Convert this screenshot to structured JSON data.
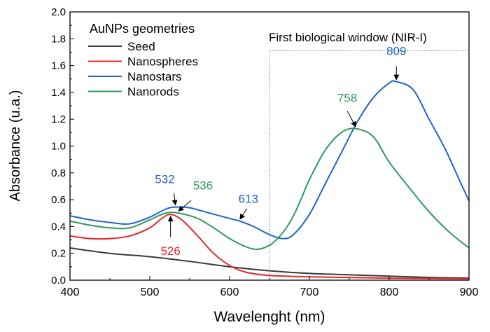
{
  "chart_data": {
    "type": "line",
    "xlabel": "Wavelenght (nm)",
    "ylabel": "Absorbance (u.a.)",
    "xlim": [
      400,
      900
    ],
    "ylim": [
      0,
      2.0
    ],
    "xticks": [
      400,
      500,
      600,
      700,
      800,
      900
    ],
    "yticks": [
      "0.0",
      "0.2",
      "0.4",
      "0.6",
      "0.8",
      "1.0",
      "1.2",
      "1.4",
      "1.6",
      "1.8",
      "2.0"
    ],
    "grid": false,
    "legend": {
      "title": "AuNPs geometries",
      "placement": "top-left"
    },
    "region": {
      "label": "First biological window (NIR-I)",
      "x_range": [
        650,
        900
      ],
      "y_top": 1.71
    },
    "series": [
      {
        "name": "Seed",
        "color": "#3a3a3a",
        "x": [
          400,
          450,
          500,
          550,
          600,
          650,
          700,
          750,
          800,
          850,
          900
        ],
        "y": [
          0.24,
          0.2,
          0.175,
          0.14,
          0.1,
          0.07,
          0.05,
          0.04,
          0.03,
          0.02,
          0.015
        ]
      },
      {
        "name": "Nanospheres",
        "color": "#e8262a",
        "x": [
          400,
          425,
          450,
          475,
          500,
          515,
          526,
          540,
          560,
          580,
          600,
          620,
          650,
          700,
          800,
          900
        ],
        "y": [
          0.33,
          0.31,
          0.31,
          0.33,
          0.39,
          0.46,
          0.49,
          0.45,
          0.33,
          0.2,
          0.11,
          0.06,
          0.035,
          0.025,
          0.015,
          0.01
        ]
      },
      {
        "name": "Nanostars",
        "color": "#1f64c8",
        "x": [
          400,
          425,
          450,
          475,
          500,
          520,
          532,
          550,
          575,
          600,
          613,
          630,
          650,
          667,
          680,
          700,
          720,
          740,
          760,
          780,
          800,
          809,
          830,
          850,
          870,
          890,
          900
        ],
        "y": [
          0.48,
          0.45,
          0.43,
          0.42,
          0.47,
          0.53,
          0.545,
          0.54,
          0.5,
          0.46,
          0.44,
          0.4,
          0.34,
          0.31,
          0.34,
          0.49,
          0.72,
          0.95,
          1.18,
          1.36,
          1.47,
          1.48,
          1.42,
          1.2,
          0.98,
          0.72,
          0.59
        ]
      },
      {
        "name": "Nanorods",
        "color": "#2e9a5a",
        "x": [
          400,
          425,
          450,
          475,
          500,
          520,
          536,
          560,
          580,
          600,
          620,
          635,
          650,
          660,
          670,
          680,
          690,
          700,
          720,
          740,
          758,
          780,
          800,
          825,
          850,
          875,
          900
        ],
        "y": [
          0.44,
          0.41,
          0.39,
          0.39,
          0.45,
          0.5,
          0.5,
          0.46,
          0.39,
          0.31,
          0.25,
          0.23,
          0.26,
          0.31,
          0.38,
          0.48,
          0.61,
          0.75,
          0.97,
          1.1,
          1.13,
          1.07,
          0.88,
          0.69,
          0.51,
          0.36,
          0.24
        ]
      }
    ],
    "annotations": [
      {
        "text": "532",
        "x": 532,
        "y": 0.545,
        "color": "#1f64c8"
      },
      {
        "text": "536",
        "x": 536,
        "y": 0.5,
        "color": "#2e9a5a"
      },
      {
        "text": "613",
        "x": 613,
        "y": 0.44,
        "color": "#1f64c8"
      },
      {
        "text": "526",
        "x": 526,
        "y": 0.49,
        "color": "#e8262a"
      },
      {
        "text": "758",
        "x": 758,
        "y": 1.13,
        "color": "#2e9a5a"
      },
      {
        "text": "809",
        "x": 809,
        "y": 1.48,
        "color": "#1f64c8"
      }
    ]
  }
}
